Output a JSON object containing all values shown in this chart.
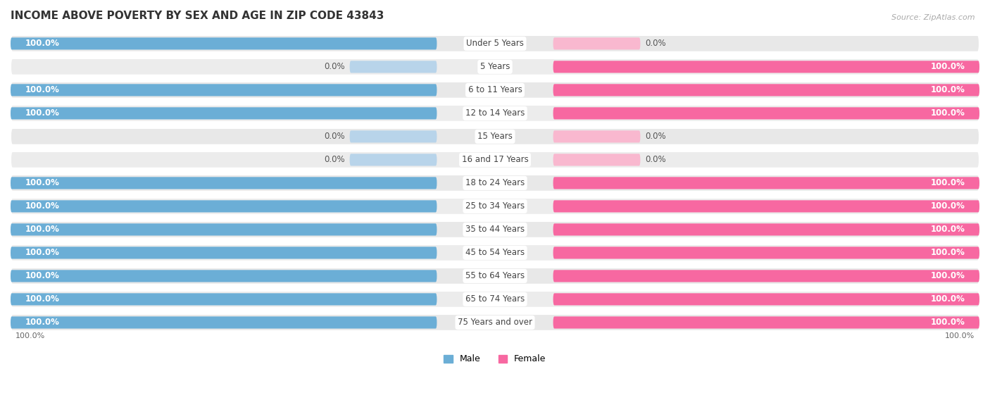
{
  "title": "INCOME ABOVE POVERTY BY SEX AND AGE IN ZIP CODE 43843",
  "source": "Source: ZipAtlas.com",
  "categories": [
    "Under 5 Years",
    "5 Years",
    "6 to 11 Years",
    "12 to 14 Years",
    "15 Years",
    "16 and 17 Years",
    "18 to 24 Years",
    "25 to 34 Years",
    "35 to 44 Years",
    "45 to 54 Years",
    "55 to 64 Years",
    "65 to 74 Years",
    "75 Years and over"
  ],
  "male_values": [
    100.0,
    0.0,
    100.0,
    100.0,
    0.0,
    0.0,
    100.0,
    100.0,
    100.0,
    100.0,
    100.0,
    100.0,
    100.0
  ],
  "female_values": [
    0.0,
    100.0,
    100.0,
    100.0,
    0.0,
    0.0,
    100.0,
    100.0,
    100.0,
    100.0,
    100.0,
    100.0,
    100.0
  ],
  "male_color": "#6baed6",
  "female_color": "#f768a1",
  "male_light_color": "#b8d4ea",
  "female_light_color": "#f9b8cf",
  "bg_color": "#ffffff",
  "row_color": "#e8e8e8",
  "row_white": "#ffffff",
  "title_fontsize": 11,
  "label_fontsize": 8.5,
  "value_fontsize": 8.5,
  "legend_fontsize": 9
}
